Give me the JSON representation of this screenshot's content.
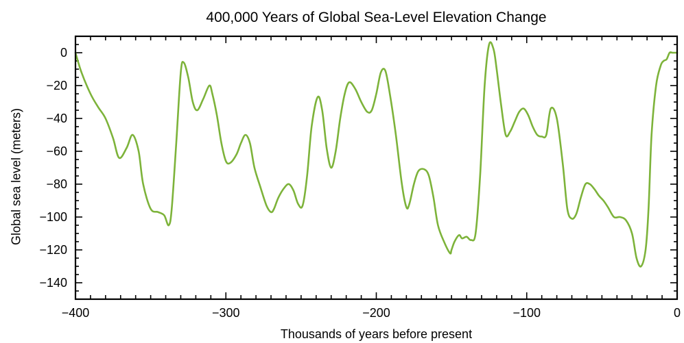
{
  "chart_data": {
    "type": "line",
    "title": "400,000 Years of Global Sea-Level Elevation Change",
    "xlabel": "Thousands of years before present",
    "ylabel": "Global sea level (meters)",
    "xlim": [
      -400,
      0
    ],
    "ylim": [
      -150,
      10
    ],
    "xticks": [
      -400,
      -300,
      -200,
      -100,
      0
    ],
    "yticks": [
      0,
      -20,
      -40,
      -60,
      -80,
      -100,
      -120,
      -140
    ],
    "xtick_labels": [
      "−400",
      "−300",
      "−200",
      "−100",
      "0"
    ],
    "ytick_labels": [
      "0",
      "−20",
      "−40",
      "−60",
      "−80",
      "−100",
      "−120",
      "−140"
    ],
    "grid": false,
    "line_color": "#7db33a",
    "series": [
      {
        "x": [
          -400,
          -396,
          -390,
          -385,
          -380,
          -375,
          -371,
          -366,
          -362,
          -358,
          -355,
          -350,
          -345,
          -341,
          -338,
          -336,
          -333,
          -330,
          -328,
          -325,
          -322,
          -319,
          -315,
          -311,
          -309,
          -306,
          -303,
          -300,
          -297,
          -293,
          -290,
          -287,
          -284,
          -281,
          -277,
          -273,
          -270,
          -268,
          -265,
          -261,
          -258,
          -255,
          -252,
          -249,
          -246,
          -243,
          -239,
          -236,
          -233,
          -230,
          -227,
          -224,
          -221,
          -218,
          -214,
          -210,
          -206,
          -203,
          -200,
          -197,
          -194,
          -191,
          -187,
          -183,
          -180,
          -178,
          -175,
          -172,
          -168,
          -165,
          -162,
          -159,
          -155,
          -151,
          -150,
          -148,
          -145,
          -143,
          -140,
          -137,
          -134,
          -131,
          -128,
          -125,
          -122,
          -120,
          -117,
          -114,
          -111,
          -108,
          -105,
          -102,
          -99,
          -96,
          -93,
          -90,
          -87,
          -84,
          -80,
          -76,
          -73,
          -70,
          -67,
          -64,
          -61,
          -58,
          -55,
          -52,
          -49,
          -46,
          -42,
          -38,
          -34,
          -30,
          -27,
          -24,
          -21,
          -19,
          -17,
          -14,
          -11,
          -9,
          -7,
          -5,
          -3,
          0
        ],
        "y": [
          0,
          -12,
          -25,
          -33,
          -40,
          -52,
          -64,
          -58,
          -50,
          -60,
          -80,
          -95,
          -97,
          -99,
          -105,
          -95,
          -55,
          -12,
          -6,
          -15,
          -30,
          -35,
          -28,
          -20,
          -25,
          -38,
          -55,
          -66,
          -67,
          -62,
          -55,
          -50,
          -55,
          -70,
          -82,
          -93,
          -97,
          -95,
          -88,
          -82,
          -80,
          -84,
          -92,
          -93,
          -75,
          -45,
          -27,
          -35,
          -58,
          -70,
          -60,
          -40,
          -25,
          -18,
          -22,
          -30,
          -36,
          -35,
          -25,
          -12,
          -11,
          -25,
          -50,
          -80,
          -94,
          -92,
          -80,
          -72,
          -71,
          -75,
          -88,
          -105,
          -115,
          -122,
          -120,
          -115,
          -111,
          -113,
          -112,
          -114,
          -110,
          -75,
          -20,
          5,
          2,
          -10,
          -32,
          -50,
          -48,
          -42,
          -36,
          -34,
          -38,
          -45,
          -50,
          -51,
          -50,
          -34,
          -40,
          -68,
          -95,
          -101,
          -98,
          -88,
          -80,
          -80,
          -83,
          -87,
          -90,
          -94,
          -100,
          -100,
          -102,
          -110,
          -125,
          -130,
          -120,
          -95,
          -50,
          -20,
          -8,
          -5,
          -4,
          0,
          0,
          0
        ]
      }
    ]
  }
}
